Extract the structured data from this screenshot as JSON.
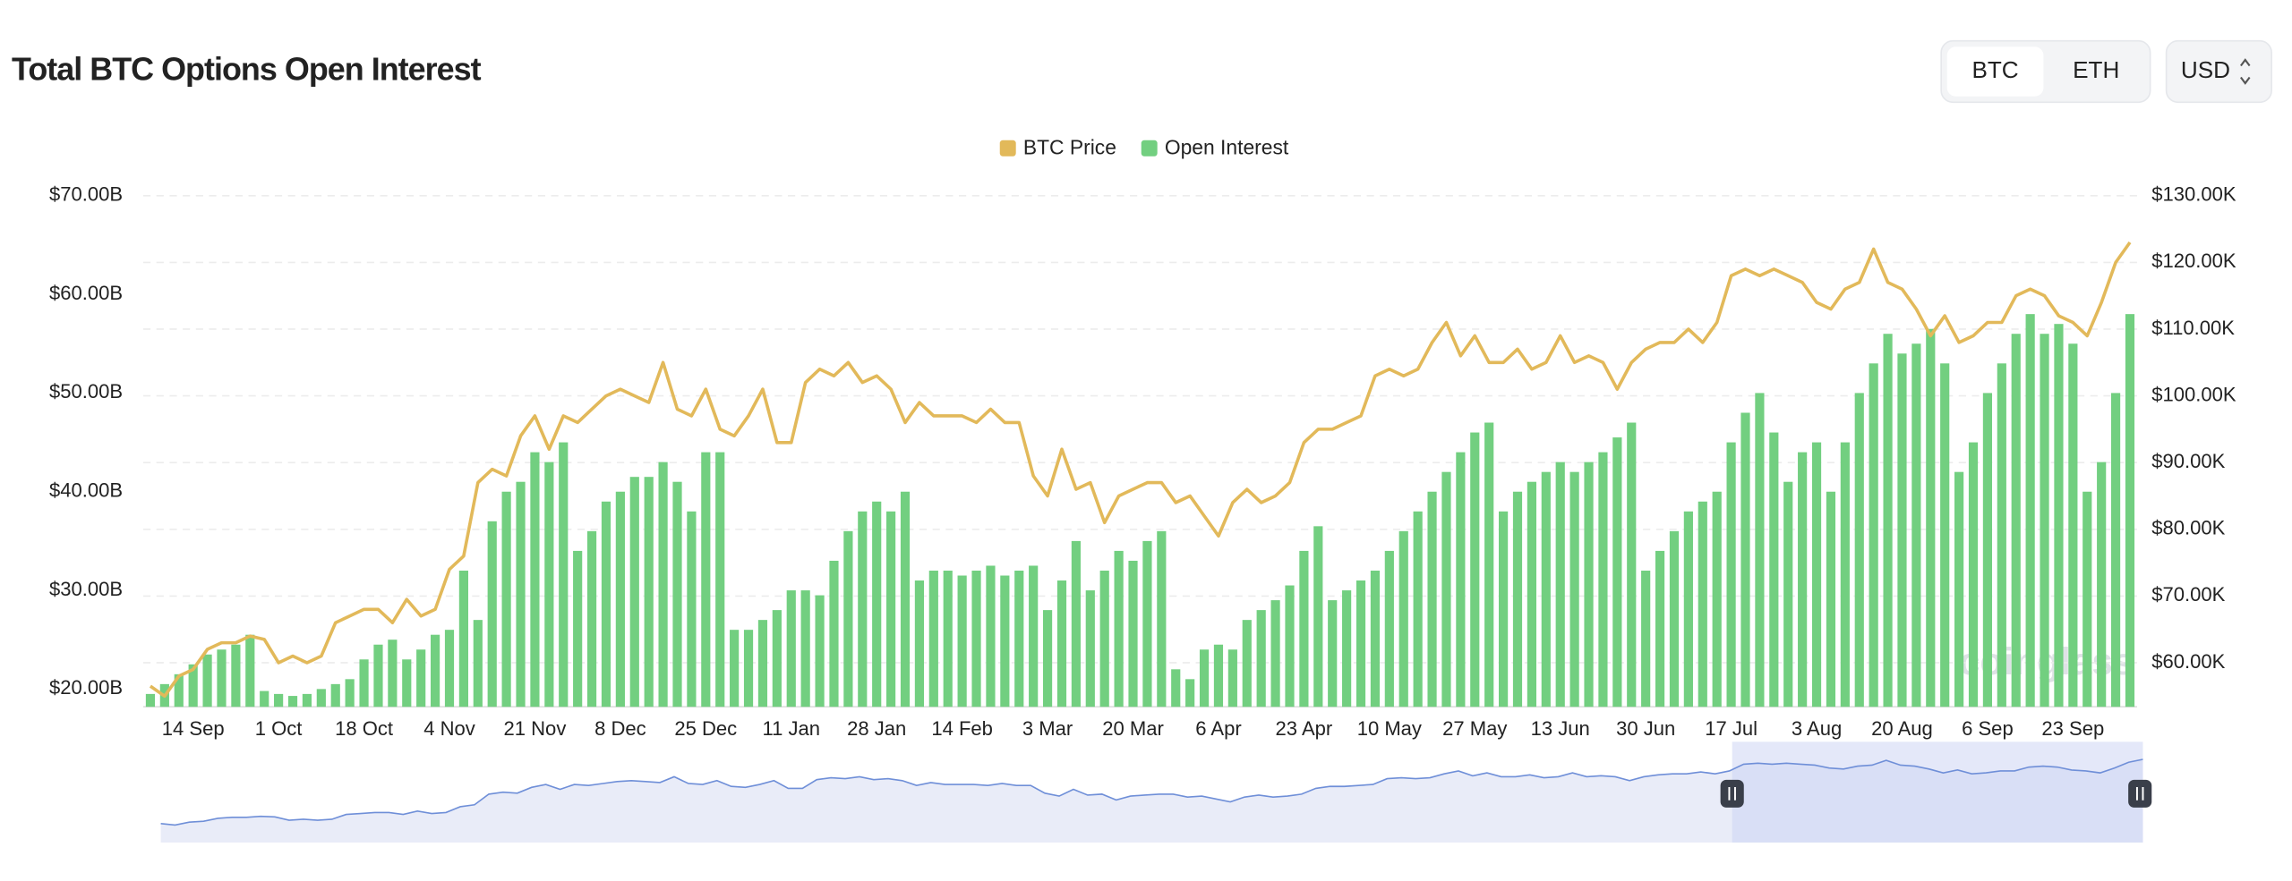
{
  "controls": {
    "coins": [
      "BTC",
      "ETH"
    ],
    "currency": "USD"
  },
  "chart_data": {
    "type": "bar",
    "title": "Total BTC Options Open Interest",
    "watermark": "coinglass",
    "categories": [
      null,
      null,
      null,
      "14 Sep",
      null,
      null,
      null,
      null,
      null,
      "1 Oct",
      null,
      null,
      null,
      null,
      null,
      "18 Oct",
      null,
      null,
      null,
      null,
      null,
      "4 Nov",
      null,
      null,
      null,
      null,
      null,
      "21 Nov",
      null,
      null,
      null,
      null,
      null,
      "8 Dec",
      null,
      null,
      null,
      null,
      null,
      "25 Dec",
      null,
      null,
      null,
      null,
      null,
      "11 Jan",
      null,
      null,
      null,
      null,
      null,
      "28 Jan",
      null,
      null,
      null,
      null,
      null,
      "14 Feb",
      null,
      null,
      null,
      null,
      null,
      "3 Mar",
      null,
      null,
      null,
      null,
      null,
      "20 Mar",
      null,
      null,
      null,
      null,
      null,
      "6 Apr",
      null,
      null,
      null,
      null,
      null,
      "23 Apr",
      null,
      null,
      null,
      null,
      null,
      "10 May",
      null,
      null,
      null,
      null,
      null,
      "27 May",
      null,
      null,
      null,
      null,
      null,
      "13 Jun",
      null,
      null,
      null,
      null,
      null,
      "30 Jun",
      null,
      null,
      null,
      null,
      null,
      "17 Jul",
      null,
      null,
      null,
      null,
      null,
      "3 Aug",
      null,
      null,
      null,
      null,
      null,
      "20 Aug",
      null,
      null,
      null,
      null,
      null,
      "6 Sep",
      null,
      null,
      null,
      null,
      null,
      "23 Sep",
      null,
      null,
      null,
      null
    ],
    "series": [
      {
        "name": "Open Interest",
        "type": "bar",
        "axis": "y",
        "color": "#72cf80",
        "values": [
          19.5,
          20.5,
          21.5,
          22.5,
          23.5,
          24,
          24.5,
          25.5,
          19.8,
          19.5,
          19.3,
          19.5,
          20,
          20.5,
          21,
          23,
          24.5,
          25,
          23,
          24,
          25.5,
          26,
          32,
          27,
          37,
          40,
          41,
          44,
          43,
          45,
          34,
          36,
          39,
          40,
          41.5,
          41.5,
          43,
          41,
          38,
          44,
          44,
          26,
          26,
          27,
          28,
          30,
          30,
          29.5,
          33,
          36,
          38,
          39,
          38,
          40,
          31,
          32,
          32,
          31.5,
          32,
          32.5,
          31.5,
          32,
          32.5,
          28,
          31,
          35,
          30,
          32,
          34,
          33,
          35,
          36,
          22,
          21,
          24,
          24.5,
          24,
          27,
          28,
          29,
          30.5,
          34,
          36.5,
          29,
          30,
          31,
          32,
          34,
          36,
          38,
          40,
          42,
          44,
          46,
          47,
          38,
          40,
          41,
          42,
          43,
          42,
          43,
          44,
          45.5,
          47,
          32,
          34,
          36,
          38,
          39,
          40,
          45,
          48,
          50,
          46,
          41,
          44,
          45,
          40,
          45,
          50,
          53,
          56,
          54,
          55,
          56.5,
          53,
          42,
          45,
          50,
          53,
          56,
          58,
          56,
          57,
          55,
          40,
          43,
          50,
          58
        ]
      },
      {
        "name": "BTC Price",
        "type": "line",
        "axis": "y2",
        "color": "#e2b95a",
        "values": [
          56.5,
          55,
          58,
          59,
          62,
          63,
          63,
          64,
          63.5,
          60,
          61,
          60,
          61,
          66,
          67,
          68,
          68,
          66,
          69.5,
          67,
          68,
          74,
          76,
          87,
          89,
          88,
          94,
          97,
          92,
          97,
          96,
          98,
          100,
          101,
          100,
          99,
          105,
          98,
          97,
          101,
          95,
          94,
          97,
          101,
          93,
          93,
          102,
          104,
          103,
          105,
          102,
          103,
          101,
          96,
          99,
          97,
          97,
          97,
          96,
          98,
          96,
          96,
          88,
          85,
          92,
          86,
          87,
          81,
          85,
          86,
          87,
          87,
          84,
          85,
          82,
          79,
          84,
          86,
          84,
          85,
          87,
          93,
          95,
          95,
          96,
          97,
          103,
          104,
          103,
          104,
          108,
          111,
          106,
          109,
          105,
          105,
          107,
          104,
          105,
          109,
          105,
          106,
          105,
          101,
          105,
          107,
          108,
          108,
          110,
          108,
          111,
          118,
          119,
          118,
          119,
          118,
          117,
          114,
          113,
          116,
          117,
          122,
          117,
          116,
          113,
          109,
          112,
          108,
          109,
          111,
          111,
          115,
          116,
          115,
          112,
          111,
          109,
          114,
          120,
          123
        ]
      }
    ],
    "ylim": [
      18.2,
      70
    ],
    "yticks": [
      {
        "value": 20,
        "label": "$20.00B"
      },
      {
        "value": 30,
        "label": "$30.00B"
      },
      {
        "value": 40,
        "label": "$40.00B"
      },
      {
        "value": 50,
        "label": "$50.00B"
      },
      {
        "value": 60,
        "label": "$60.00B"
      },
      {
        "value": 70,
        "label": "$70.00B"
      }
    ],
    "y2lim": [
      53.4,
      130
    ],
    "y2ticks": [
      {
        "value": 60,
        "label": "$60.00K"
      },
      {
        "value": 70,
        "label": "$70.00K"
      },
      {
        "value": 80,
        "label": "$80.00K"
      },
      {
        "value": 90,
        "label": "$90.00K"
      },
      {
        "value": 100,
        "label": "$100.00K"
      },
      {
        "value": 110,
        "label": "$110.00K"
      },
      {
        "value": 120,
        "label": "$120.00K"
      },
      {
        "value": 130,
        "label": "$130.00K"
      }
    ],
    "grid": true,
    "legend": "top"
  }
}
